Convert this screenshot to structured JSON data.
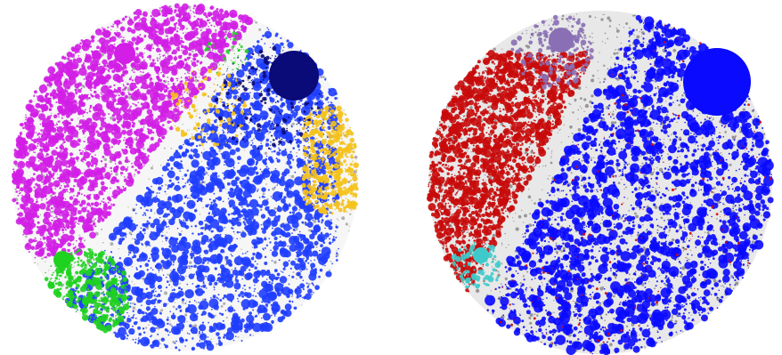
{
  "figure": {
    "panels": [
      {
        "id": "left",
        "palette": {
          "magenta": "#d21ee6",
          "blue": "#1f3dff",
          "navy": "#0a0a78",
          "yellow": "#f5c21a",
          "green": "#1fd21f",
          "gray": "#a6a6a6"
        }
      },
      {
        "id": "right",
        "palette": {
          "red": "#c80a0a",
          "blue": "#0a0aff",
          "purple": "#8a6fb5",
          "gray": "#8f8f8f",
          "cyan": "#3ecaca"
        }
      }
    ]
  }
}
